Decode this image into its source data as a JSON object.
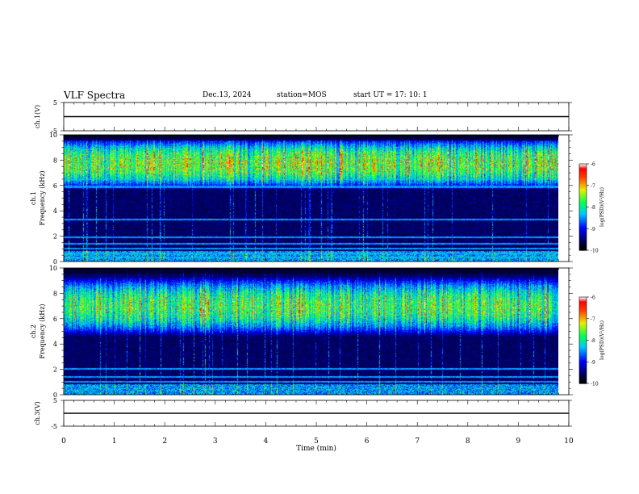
{
  "header": {
    "title": "VLF Spectra",
    "date": "Dec.13, 2024",
    "station": "station=MOS",
    "start": "start  UT  =   17: 10: 1"
  },
  "chart_data": [
    {
      "type": "line",
      "name": "ch1-voltage",
      "ylabel": "ch.1(V)",
      "ylim": [
        -5,
        5
      ],
      "yticks": [
        "5",
        "-5"
      ],
      "x": [
        0,
        10
      ],
      "y": [
        0,
        0
      ]
    },
    {
      "type": "heatmap",
      "name": "ch1-spectrogram",
      "ylabel": "ch.1\nFrequency (kHz)",
      "ylabel_line1": "ch.1",
      "ylabel_line2": "Frequency (kHz)",
      "xlim": [
        0,
        9.8
      ],
      "ylim": [
        0,
        10
      ],
      "yticks": [
        "0",
        "2",
        "4",
        "6",
        "8",
        "10"
      ],
      "colorbar": {
        "label": "log(PSD)(V²/Hz)",
        "range": [
          -10,
          -6
        ],
        "ticks": [
          "-6",
          "-7",
          "-8",
          "-9",
          "-10"
        ]
      },
      "narrowband_lines_khz": [
        0.3,
        0.6,
        1.0,
        1.4,
        1.9,
        3.3,
        5.9,
        6.5
      ],
      "emission_band_khz": [
        6.0,
        9.5
      ],
      "peak_log_psd": -6.2,
      "background_log_psd": -10
    },
    {
      "type": "heatmap",
      "name": "ch2-spectrogram",
      "ylabel_line1": "ch.2",
      "ylabel_line2": "Frequency (kHz)",
      "xlim": [
        0,
        9.8
      ],
      "ylim": [
        0,
        10
      ],
      "yticks": [
        "0",
        "2",
        "4",
        "6",
        "8",
        "10"
      ],
      "colorbar": {
        "label": "log(PSD)(V²/Hz)",
        "range": [
          -10,
          -6
        ],
        "ticks": [
          "-6",
          "-7",
          "-8",
          "-9",
          "-10"
        ]
      },
      "narrowband_lines_khz": [
        1.0,
        1.4,
        2.0
      ],
      "emission_band_khz": [
        5.0,
        9.0
      ],
      "peak_log_psd": -6.5,
      "background_log_psd": -10
    },
    {
      "type": "line",
      "name": "ch3-voltage",
      "ylabel": "ch.3(V)",
      "ylim": [
        -5,
        5
      ],
      "yticks": [
        "5",
        "-5"
      ],
      "x": [
        0,
        10
      ],
      "y": [
        0,
        0
      ]
    }
  ],
  "xaxis": {
    "label": "Time (min)",
    "range": [
      0,
      10
    ],
    "ticks": [
      "0",
      "1",
      "2",
      "3",
      "4",
      "5",
      "6",
      "7",
      "8",
      "9",
      "10"
    ]
  }
}
